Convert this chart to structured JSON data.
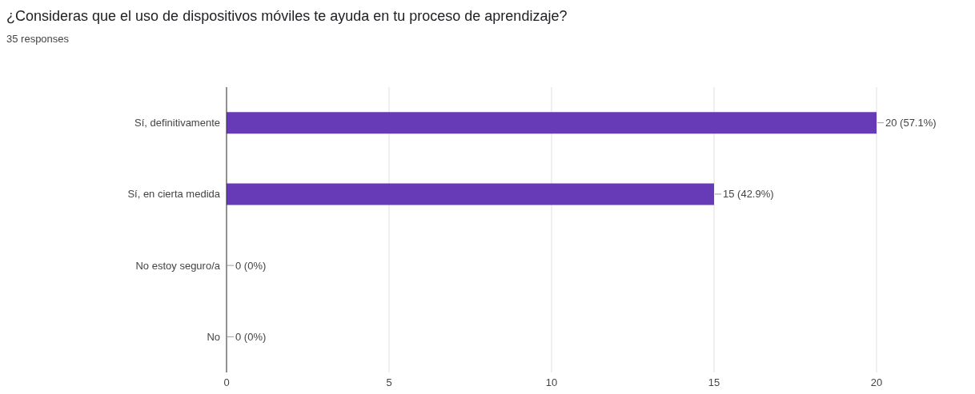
{
  "chart_data": {
    "type": "bar",
    "orientation": "horizontal",
    "title": "¿Consideras que el uso de dispositivos móviles te ayuda en tu proceso de aprendizaje?",
    "subtitle": "35 responses",
    "categories": [
      "Sí, definitivamente",
      "Sí, en cierta medida",
      "No estoy seguro/a",
      "No"
    ],
    "values": [
      20,
      15,
      0,
      0
    ],
    "value_labels": [
      "20 (57.1%)",
      "15 (42.9%)",
      "0 (0%)",
      "0 (0%)"
    ],
    "color": "#673ab7",
    "xlim": [
      0,
      20
    ],
    "xticks": [
      0,
      5,
      10,
      15,
      20
    ],
    "grid": "x"
  }
}
